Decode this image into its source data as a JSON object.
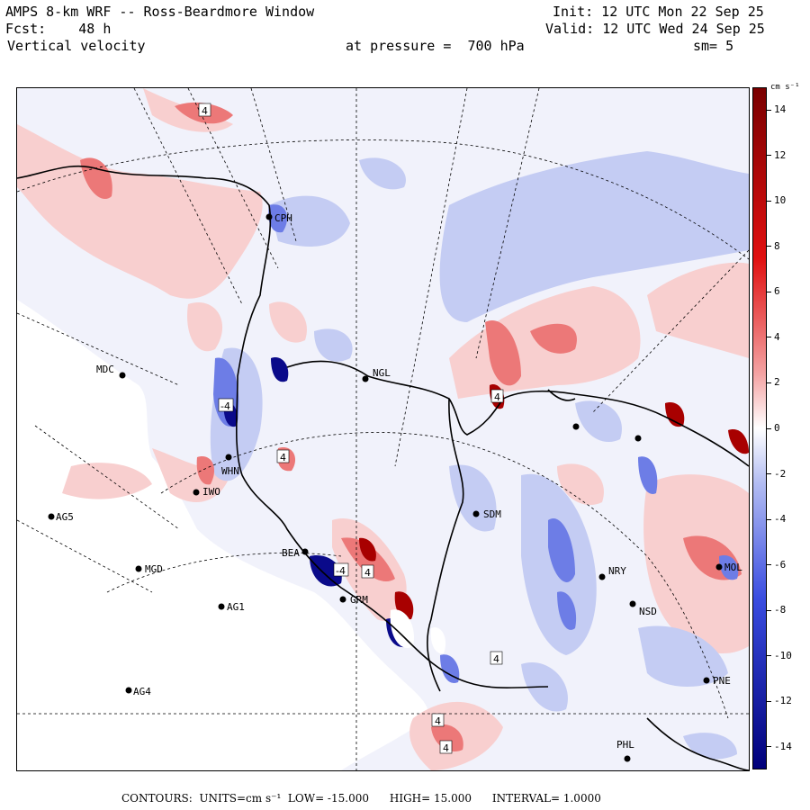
{
  "header": {
    "model": "AMPS 8-km WRF -- Ross-Beardmore Window",
    "init": "Init: 12 UTC Mon 22 Sep 25",
    "fcst_label": "Fcst:",
    "fcst_value": "48 h",
    "valid": "Valid: 12 UTC Wed 24 Sep 25",
    "field": "Vertical velocity",
    "pressure_label": "at pressure =",
    "pressure_value": "700 hPa",
    "smoothing": "sm= 5"
  },
  "colorbar": {
    "units": "cm s⁻¹",
    "ticks": [
      "14",
      "12",
      "10",
      "8",
      "6",
      "4",
      "2",
      "0",
      "-2",
      "-4",
      "-6",
      "-8",
      "-10",
      "-12",
      "-14"
    ],
    "colors": {
      "pos_strong": "#7a0000",
      "pos_mid": "#e01010",
      "pos_weak": "#f4a3a3",
      "neutral": "#ffffff",
      "neg_weak": "#b3bdf2",
      "neg_mid": "#3a4de0",
      "neg_strong": "#00007a"
    }
  },
  "stations": [
    {
      "id": "CPH"
    },
    {
      "id": "MDC"
    },
    {
      "id": "NGL"
    },
    {
      "id": "WHN"
    },
    {
      "id": "IWO"
    },
    {
      "id": "AG5"
    },
    {
      "id": "SDM"
    },
    {
      "id": "BEA"
    },
    {
      "id": "MGD"
    },
    {
      "id": "GRM"
    },
    {
      "id": "AG1"
    },
    {
      "id": "NRY"
    },
    {
      "id": "NSD"
    },
    {
      "id": "AG4"
    },
    {
      "id": "PNE"
    },
    {
      "id": "PHL"
    },
    {
      "id": "MOL"
    }
  ],
  "contour_labels": [
    "4",
    "4",
    "-4",
    "4",
    "4",
    "4",
    "4",
    "4",
    "-4"
  ],
  "footer": {
    "contours_label": "CONTOURS:",
    "units": "UNITS=cm s⁻¹",
    "low": "LOW= -15.000",
    "high": "HIGH= 15.000",
    "interval": "INTERVAL= 1.0000"
  }
}
